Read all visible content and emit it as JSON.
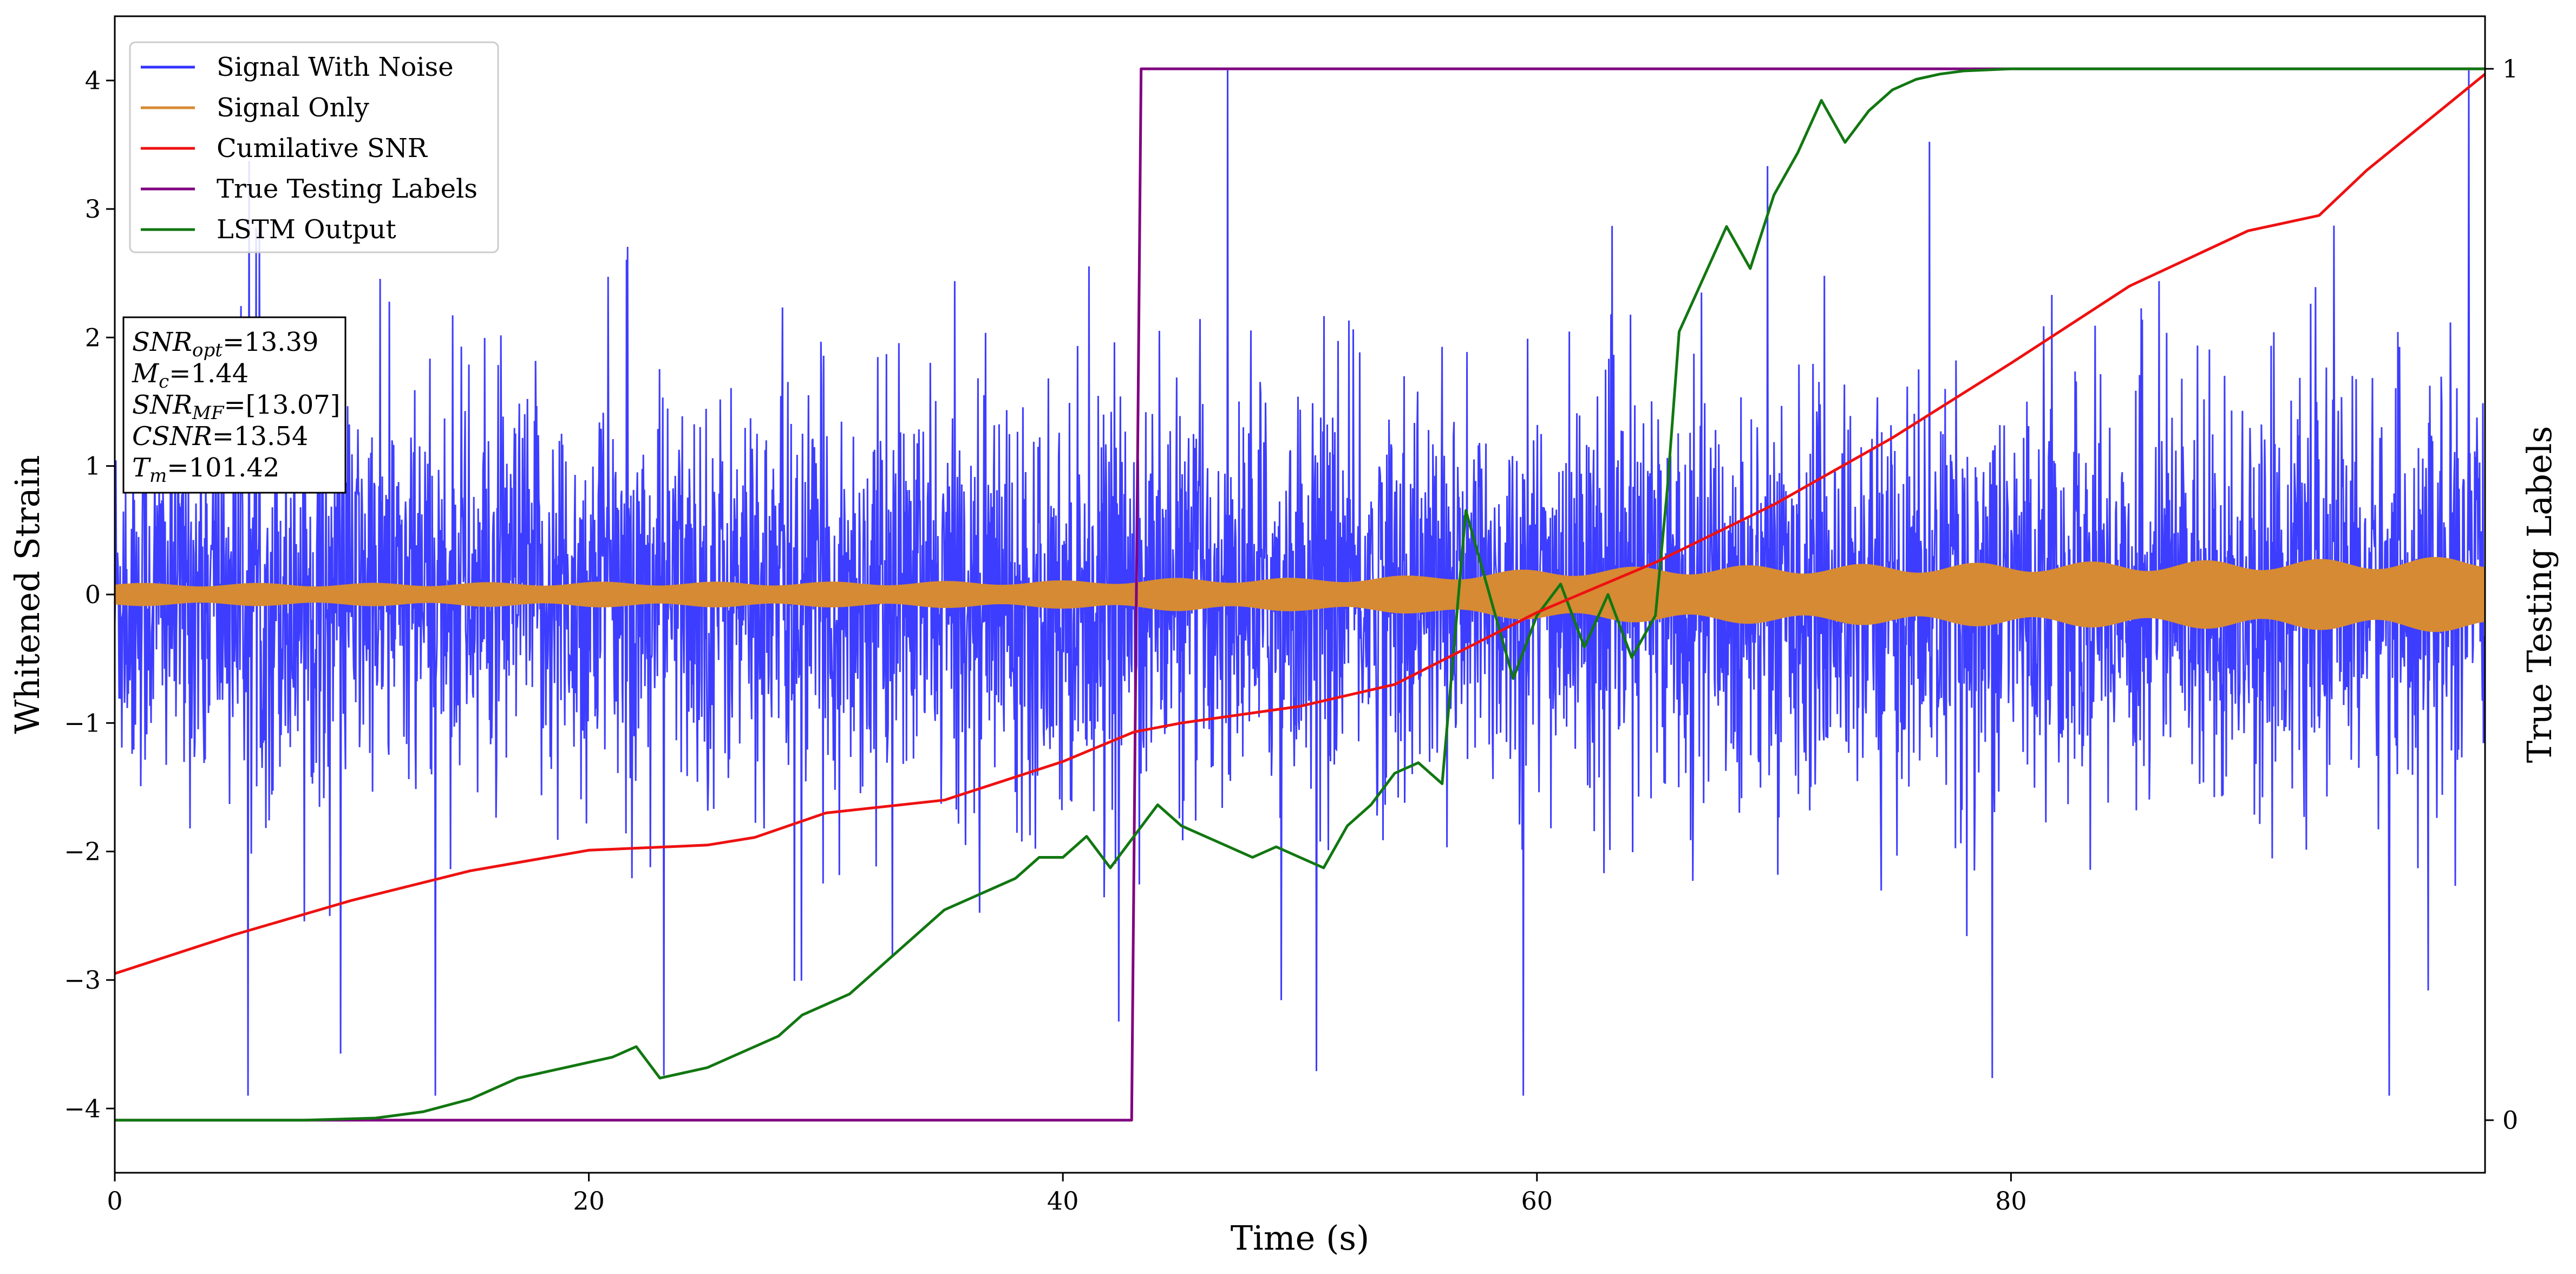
{
  "chart_data": {
    "type": "line",
    "xlabel": "Time (s)",
    "ylabel": "Whitened Strain",
    "y2label": "True Testing Labels",
    "xlim": [
      0,
      100
    ],
    "ylim": [
      -4.5,
      4.5
    ],
    "y2lim": [
      -0.05,
      1.05
    ],
    "x_ticks": [
      0,
      20,
      40,
      60,
      80
    ],
    "y_ticks": [
      -4,
      -3,
      -2,
      -1,
      0,
      1,
      2,
      3,
      4
    ],
    "y2_ticks": [
      0,
      1
    ],
    "grid": false,
    "legend_position": "upper-left",
    "colors": {
      "signal_with_noise": "#3333ff",
      "signal_only": "#d68a33",
      "cumulative_snr": "#ee1111",
      "true_labels": "#800080",
      "lstm_output": "#117711"
    },
    "series": [
      {
        "name": "Signal With Noise",
        "axis": "left",
        "description_values": {
          "mean": 0.0,
          "typical_band": [
            -1.2,
            1.2
          ],
          "max_excursion": 4.08,
          "min_excursion": -3.9
        }
      },
      {
        "name": "Signal Only",
        "axis": "left",
        "envelope_x": [
          0,
          10,
          20,
          30,
          40,
          43,
          45,
          50,
          55,
          60,
          65,
          70,
          75,
          80,
          85,
          90,
          95,
          100
        ],
        "envelope_amp": [
          0.09,
          0.09,
          0.1,
          0.1,
          0.11,
          0.12,
          0.13,
          0.13,
          0.15,
          0.2,
          0.22,
          0.23,
          0.24,
          0.25,
          0.26,
          0.27,
          0.28,
          0.3
        ]
      },
      {
        "name": "Cumilative SNR",
        "axis": "left",
        "x": [
          0,
          5,
          10,
          15,
          20,
          25,
          27,
          30,
          35,
          40,
          43,
          45,
          50,
          54,
          57,
          60,
          65,
          70,
          75,
          80,
          85,
          90,
          93,
          95,
          100
        ],
        "y": [
          -2.95,
          -2.65,
          -2.38,
          -2.15,
          -1.99,
          -1.95,
          -1.89,
          -1.7,
          -1.6,
          -1.3,
          -1.07,
          -1.0,
          -0.87,
          -0.7,
          -0.42,
          -0.14,
          0.25,
          0.7,
          1.22,
          1.8,
          2.4,
          2.83,
          2.95,
          3.3,
          4.05
        ]
      },
      {
        "name": "True Testing Labels",
        "axis": "right",
        "x": [
          0,
          42.9,
          43.3,
          100
        ],
        "y": [
          0,
          0,
          1,
          1
        ]
      },
      {
        "name": "LSTM Output",
        "axis": "right",
        "x": [
          0,
          8,
          11,
          13,
          15,
          16,
          17,
          18,
          19,
          20,
          21,
          22,
          23,
          24,
          25,
          26,
          27,
          28,
          29,
          30,
          31,
          32,
          33,
          34,
          35,
          36,
          37,
          38,
          39,
          40,
          41,
          42,
          43,
          44,
          45,
          46,
          47,
          48,
          49,
          50,
          51,
          52,
          53,
          54,
          55,
          56,
          56.5,
          57,
          58,
          59,
          60,
          61,
          62,
          63,
          64,
          65,
          65.5,
          66,
          67,
          68,
          69,
          70,
          71,
          72,
          73,
          74,
          75,
          76,
          77,
          78,
          80,
          83,
          90,
          100
        ],
        "y": [
          0,
          0,
          0.002,
          0.008,
          0.02,
          0.03,
          0.04,
          0.045,
          0.05,
          0.055,
          0.06,
          0.07,
          0.04,
          0.045,
          0.05,
          0.06,
          0.07,
          0.08,
          0.1,
          0.11,
          0.12,
          0.14,
          0.16,
          0.18,
          0.2,
          0.21,
          0.22,
          0.23,
          0.25,
          0.25,
          0.27,
          0.24,
          0.27,
          0.3,
          0.28,
          0.27,
          0.26,
          0.25,
          0.26,
          0.25,
          0.24,
          0.28,
          0.3,
          0.33,
          0.34,
          0.32,
          0.45,
          0.58,
          0.5,
          0.42,
          0.48,
          0.51,
          0.45,
          0.5,
          0.44,
          0.48,
          0.6,
          0.75,
          0.8,
          0.85,
          0.81,
          0.88,
          0.92,
          0.97,
          0.93,
          0.96,
          0.98,
          0.99,
          0.995,
          0.998,
          1.0,
          1.0,
          1.0,
          1.0
        ]
      }
    ],
    "annotation_box": {
      "lines": [
        {
          "sym": "SNR",
          "sub": "opt",
          "value": "=13.39"
        },
        {
          "sym": "M",
          "sub": "c",
          "value": "=1.44"
        },
        {
          "sym": "SNR",
          "sub": "MF",
          "value": "=[13.07]"
        },
        {
          "sym": "CSNR",
          "sub": "",
          "value": "=13.54"
        },
        {
          "sym": "T",
          "sub": "m",
          "value": "=101.42"
        }
      ]
    }
  }
}
